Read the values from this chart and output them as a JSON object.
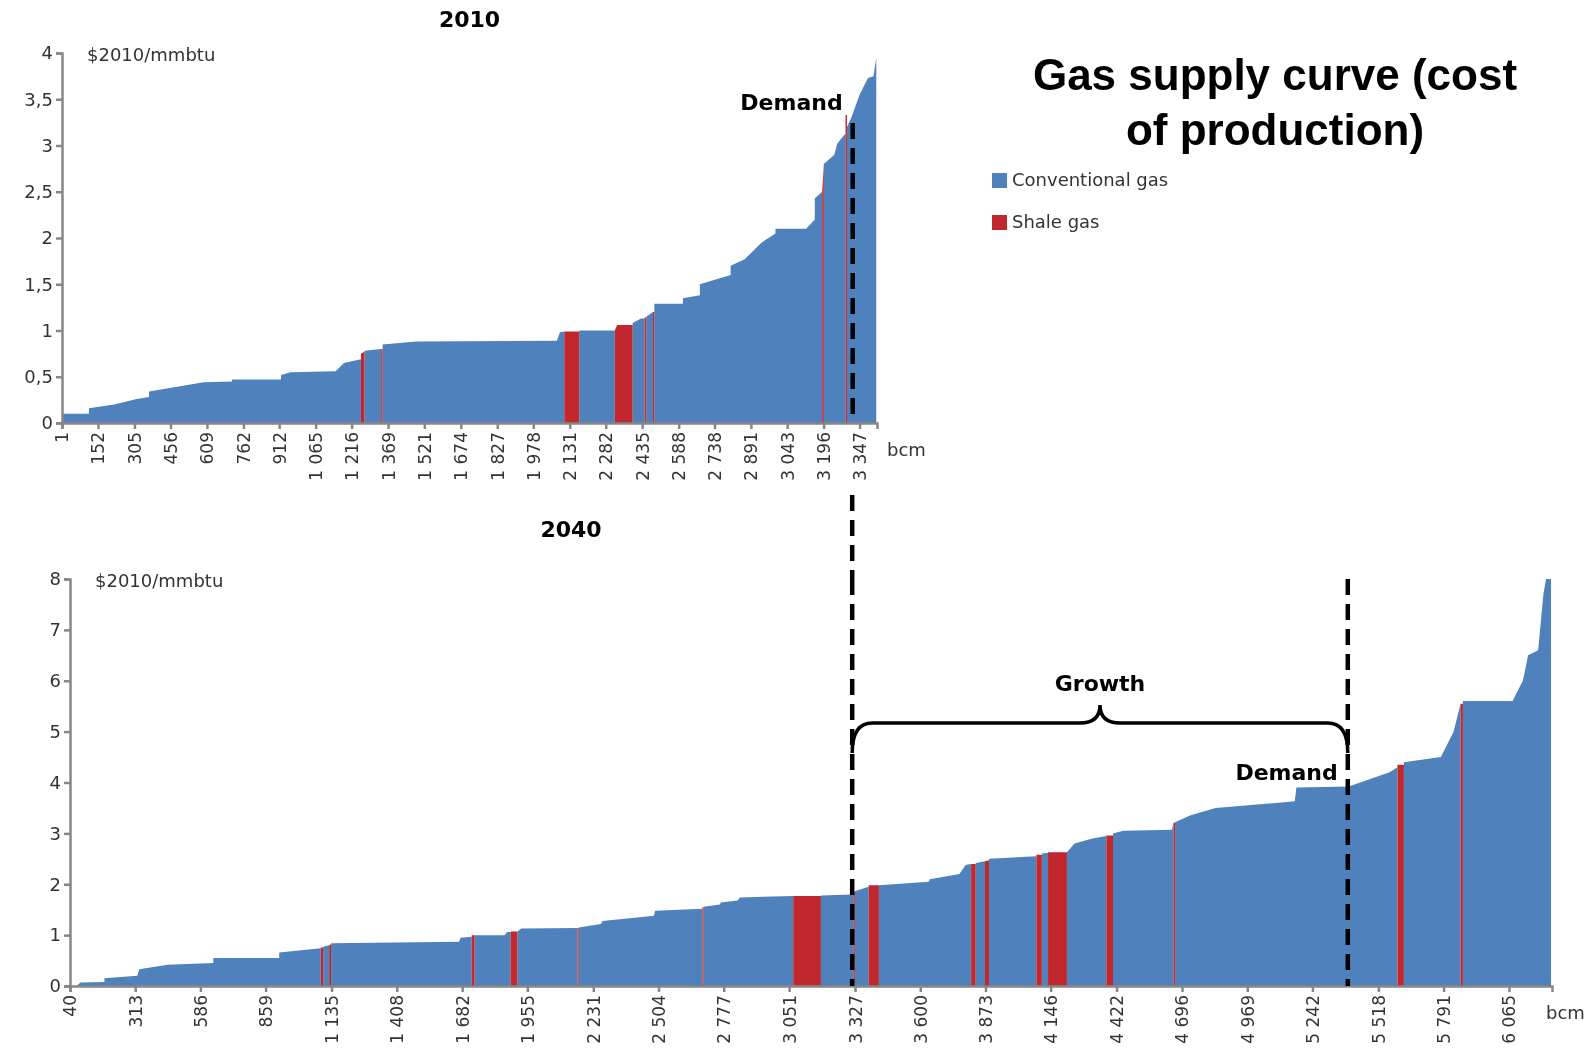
{
  "chart_data": [
    {
      "type": "area",
      "title": "2010",
      "xlabel": "bcm",
      "ylabel": "$2010/mmbtu",
      "legend": "right",
      "annotations": [
        "Gas supply curve (cost of production)"
      ],
      "xlim": [
        1,
        3420
      ],
      "xticks": [
        1,
        152,
        305,
        456,
        609,
        762,
        912,
        {
          "value": 1065,
          "label": "1 065"
        },
        {
          "value": 1216,
          "label": "1 216"
        },
        {
          "value": 1369,
          "label": "1 369"
        },
        {
          "value": 1521,
          "label": "1 521"
        },
        {
          "value": 1674,
          "label": "1 674"
        },
        {
          "value": 1827,
          "label": "1 827"
        },
        {
          "value": 1978,
          "label": "1 978"
        },
        {
          "value": 2131,
          "label": "2 131"
        },
        {
          "value": 2282,
          "label": "2 282"
        },
        {
          "value": 2435,
          "label": "2 435"
        },
        {
          "value": 2588,
          "label": "2 588"
        },
        {
          "value": 2738,
          "label": "2 738"
        },
        {
          "value": 2891,
          "label": "2 891"
        },
        {
          "value": 3043,
          "label": "3 043"
        },
        {
          "value": 3196,
          "label": "3 196"
        },
        {
          "value": 3347,
          "label": "3 347"
        }
      ],
      "ylim": [
        0,
        4
      ],
      "yticks": [
        0,
        {
          "value": 0.5,
          "label": "0,5"
        },
        1,
        {
          "value": 1.5,
          "label": "1,5"
        },
        2,
        {
          "value": 2.5,
          "label": "2,5"
        },
        3,
        {
          "value": 3.5,
          "label": "3,5"
        },
        4
      ],
      "ref_lines": [
        {
          "axis": "x",
          "value": 3318,
          "label": "Demand"
        }
      ],
      "series": [
        {
          "name": "Conventional gas",
          "color": "#4f81bd",
          "x": [
            1,
            114,
            114,
            220,
            314,
            366,
            366,
            596,
            714,
            714,
            920,
            920,
            960,
            1149,
            1184,
            1255,
            1255,
            1270,
            1270,
            1340,
            1340,
            1346,
            1346,
            1489,
            2077,
            2090,
            2108,
            2108,
            2171,
            2171,
            2320,
            2320,
            2395,
            2395,
            2430,
            2445,
            2445,
            2452,
            2452,
            2480,
            2480,
            2486,
            2486,
            2606,
            2606,
            2677,
            2677,
            2806,
            2806,
            2865,
            2935,
            2994,
            2994,
            3123,
            3159,
            3159,
            3190,
            3190,
            3197,
            3197,
            3241,
            3253,
            3284,
            3288,
            3288,
            3294,
            3294,
            3312,
            3347,
            3382,
            3405,
            3417
          ],
          "values": [
            0.1,
            0.1,
            0.16,
            0.2,
            0.26,
            0.28,
            0.34,
            0.44,
            0.45,
            0.47,
            0.47,
            0.52,
            0.55,
            0.56,
            0.65,
            0.69,
            0,
            0,
            0.78,
            0.8,
            0,
            0,
            0.85,
            0.88,
            0.89,
            0.98,
            0.99,
            0,
            0,
            1.0,
            1.0,
            0,
            0,
            1.08,
            1.13,
            1.13,
            0,
            0,
            1.15,
            1.2,
            0,
            0,
            1.29,
            1.29,
            1.35,
            1.38,
            1.5,
            1.6,
            1.7,
            1.77,
            1.95,
            2.05,
            2.1,
            2.1,
            2.2,
            2.43,
            2.5,
            0,
            0,
            2.8,
            2.9,
            3.02,
            3.12,
            3.12,
            0,
            0,
            3.2,
            3.3,
            3.55,
            3.73,
            3.75,
            3.95
          ]
        },
        {
          "name": "Shale gas",
          "color": "#c0282d",
          "x": [
            1255,
            1255,
            1270,
            1270,
            1340,
            1340,
            1346,
            1346,
            2108,
            2108,
            2171,
            2171,
            2320,
            2320,
            2330,
            2395,
            2395,
            2445,
            2445,
            2452,
            2452,
            2480,
            2480,
            2486,
            2486,
            3190,
            3190,
            3197,
            3197,
            3288,
            3288,
            3294,
            3294
          ],
          "values": [
            0,
            0.75,
            0.77,
            0,
            0,
            0.8,
            0.8,
            0,
            0,
            0.99,
            0.99,
            0,
            0,
            1.0,
            1.06,
            1.06,
            0,
            0,
            1.14,
            1.14,
            0,
            0,
            1.2,
            1.2,
            0,
            0,
            2.5,
            2.8,
            0,
            0,
            3.33,
            3.33,
            0
          ]
        }
      ]
    },
    {
      "type": "area",
      "title": "2040",
      "xlabel": "bcm",
      "ylabel": "$2010/mmbtu",
      "annotations": [
        "Growth"
      ],
      "xlim": [
        40,
        6245
      ],
      "xticks": [
        40,
        313,
        586,
        859,
        {
          "value": 1135,
          "label": "1 135"
        },
        {
          "value": 1408,
          "label": "1 408"
        },
        {
          "value": 1682,
          "label": "1 682"
        },
        {
          "value": 1955,
          "label": "1 955"
        },
        {
          "value": 2231,
          "label": "2 231"
        },
        {
          "value": 2504,
          "label": "2 504"
        },
        {
          "value": 2777,
          "label": "2 777"
        },
        {
          "value": 3051,
          "label": "3 051"
        },
        {
          "value": 3327,
          "label": "3 327"
        },
        {
          "value": 3600,
          "label": "3 600"
        },
        {
          "value": 3873,
          "label": "3 873"
        },
        {
          "value": 4146,
          "label": "4 146"
        },
        {
          "value": 4422,
          "label": "4 422"
        },
        {
          "value": 4696,
          "label": "4 696"
        },
        {
          "value": 4969,
          "label": "4 969"
        },
        {
          "value": 5242,
          "label": "5 242"
        },
        {
          "value": 5518,
          "label": "5 518"
        },
        {
          "value": 5791,
          "label": "5 791"
        },
        {
          "value": 6065,
          "label": "6 065"
        }
      ],
      "ylim": [
        0,
        8
      ],
      "yticks": [
        0,
        1,
        2,
        3,
        4,
        5,
        6,
        7,
        8
      ],
      "ref_lines": [
        {
          "axis": "x",
          "value": 3315
        },
        {
          "axis": "x",
          "value": 5390,
          "label": "Demand"
        }
      ],
      "series": [
        {
          "color": "#4f81bd",
          "x": [
            67,
            84,
            184,
            184,
            322,
            330,
            449,
            640,
            640,
            916,
            916,
            1090,
            1090,
            1100,
            1100,
            1125,
            1125,
            1133,
            1133,
            1669,
            1675,
            1722,
            1722,
            1734,
            1734,
            1860,
            1870,
            1885,
            1885,
            1913,
            1913,
            1930,
            2165,
            2165,
            2170,
            2170,
            2263,
            2270,
            2485,
            2490,
            2688,
            2688,
            2693,
            2693,
            2761,
            2765,
            2835,
            2845,
            3068,
            3068,
            3184,
            3184,
            3313,
            3320,
            3320,
            3326,
            3326,
            3384,
            3384,
            3427,
            3427,
            3635,
            3640,
            3764,
            3790,
            3813,
            3813,
            3832,
            3832,
            3871,
            3871,
            3888,
            3888,
            4086,
            4086,
            4109,
            4109,
            4135,
            4135,
            4214,
            4214,
            4246,
            4321,
            4379,
            4379,
            4407,
            4407,
            4450,
            4654,
            4660,
            4660,
            4667,
            4667,
            4729,
            4836,
            5168,
            5175,
            5394,
            5565,
            5598,
            5598,
            5625,
            5625,
            5780,
            5833,
            5862,
            5862,
            5872,
            5872,
            6080,
            6123,
            6145,
            6187,
            6209,
            6220,
            6241
          ],
          "values": [
            0,
            0.07,
            0.08,
            0.15,
            0.2,
            0.33,
            0.42,
            0.45,
            0.55,
            0.55,
            0.66,
            0.74,
            0,
            0,
            0.77,
            0.8,
            0,
            0,
            0.84,
            0.87,
            0.95,
            0.97,
            0,
            0,
            1.0,
            1.0,
            1.06,
            1.06,
            0,
            0,
            1.07,
            1.13,
            1.14,
            0,
            0,
            1.15,
            1.22,
            1.28,
            1.38,
            1.48,
            1.52,
            0,
            0,
            1.56,
            1.6,
            1.64,
            1.68,
            1.74,
            1.77,
            0,
            0,
            1.78,
            1.8,
            1.82,
            0,
            0,
            1.86,
            1.95,
            0,
            0,
            1.98,
            2.05,
            2.1,
            2.2,
            2.38,
            2.4,
            0,
            0,
            2.42,
            2.45,
            0,
            0,
            2.5,
            2.55,
            0,
            0,
            2.6,
            2.62,
            0,
            0,
            2.63,
            2.8,
            2.9,
            2.95,
            0,
            0,
            3.0,
            3.05,
            3.07,
            3.2,
            0,
            0,
            3.22,
            3.35,
            3.5,
            3.63,
            3.9,
            3.92,
            4.2,
            4.3,
            0,
            0,
            4.4,
            4.5,
            5.0,
            5.55,
            0,
            0,
            5.6,
            5.6,
            6.0,
            6.5,
            6.6,
            7.7,
            8.0,
            8.0
          ]
        },
        {
          "color": "#c0282d",
          "x": [
            1090,
            1090,
            1100,
            1100,
            1125,
            1125,
            1133,
            1133,
            1722,
            1722,
            1734,
            1734,
            1885,
            1885,
            1913,
            1913,
            2165,
            2165,
            2170,
            2170,
            2688,
            2688,
            2693,
            2693,
            3068,
            3068,
            3184,
            3184,
            3320,
            3320,
            3326,
            3326,
            3384,
            3384,
            3427,
            3427,
            3813,
            3813,
            3832,
            3832,
            3871,
            3871,
            3888,
            3888,
            4086,
            4086,
            4109,
            4109,
            4135,
            4135,
            4214,
            4214,
            4379,
            4379,
            4407,
            4407,
            4660,
            4660,
            4667,
            4667,
            5598,
            5598,
            5625,
            5625,
            5862,
            5862,
            5872,
            5872
          ],
          "values": [
            0,
            0.75,
            0.76,
            0,
            0,
            0.8,
            0.82,
            0,
            0,
            1.0,
            1.0,
            0,
            0,
            1.07,
            1.07,
            0,
            0,
            1.14,
            1.14,
            0,
            0,
            1.55,
            1.55,
            0,
            0,
            1.77,
            1.77,
            0,
            0,
            1.84,
            1.86,
            0,
            0,
            1.98,
            1.98,
            0,
            0,
            2.4,
            2.4,
            0,
            0,
            2.45,
            2.47,
            0,
            0,
            2.58,
            2.58,
            0,
            0,
            2.63,
            2.63,
            0,
            0,
            2.96,
            2.96,
            0,
            0,
            3.2,
            3.22,
            0,
            0,
            4.35,
            4.35,
            0,
            0,
            5.55,
            5.55,
            0
          ]
        }
      ]
    }
  ]
}
